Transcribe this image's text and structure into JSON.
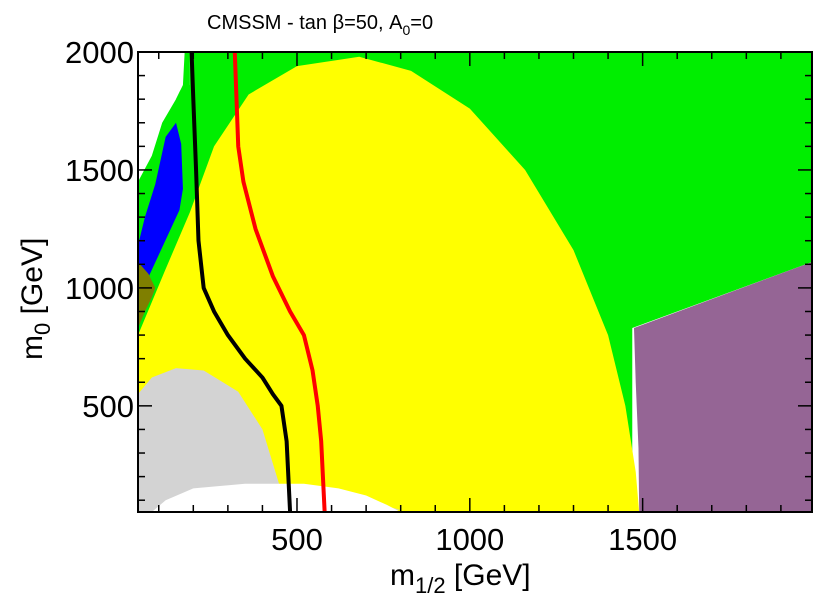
{
  "chart_data": {
    "type": "area",
    "title": "CMSSM  -  tan β=50,  A",
    "title_sub": "0",
    "title_tail": "=0",
    "xlabel": "m",
    "xlabel_sub": "1/2",
    "xlabel_unit": " [GeV]",
    "ylabel": "m",
    "ylabel_sub": "0",
    "ylabel_unit": " [GeV]",
    "xlim": [
      40,
      1990
    ],
    "ylim": [
      50,
      2000
    ],
    "x_ticks": [
      500,
      1000,
      1500
    ],
    "y_ticks": [
      500,
      1000,
      1500,
      2000
    ],
    "regions": [
      {
        "id": "green",
        "color": "#00ee00",
        "points": [
          [
            190,
            2000
          ],
          [
            1990,
            2000
          ],
          [
            1990,
            1110
          ],
          [
            1470,
            830
          ],
          [
            1470,
            50
          ],
          [
            40,
            50
          ],
          [
            40,
            1740
          ],
          [
            190,
            1860
          ]
        ]
      },
      {
        "id": "yellow",
        "color": "#ffff00",
        "points": [
          [
            40,
            800
          ],
          [
            120,
            1080
          ],
          [
            190,
            1320
          ],
          [
            260,
            1600
          ],
          [
            360,
            1820
          ],
          [
            500,
            1940
          ],
          [
            680,
            1980
          ],
          [
            830,
            1920
          ],
          [
            1000,
            1760
          ],
          [
            1160,
            1500
          ],
          [
            1300,
            1160
          ],
          [
            1400,
            800
          ],
          [
            1450,
            500
          ],
          [
            1480,
            220
          ],
          [
            1490,
            50
          ],
          [
            40,
            50
          ]
        ]
      },
      {
        "id": "purple",
        "color": "#956595",
        "points": [
          [
            1475,
            830
          ],
          [
            1990,
            1110
          ],
          [
            1990,
            50
          ],
          [
            1490,
            50
          ],
          [
            1488,
            320
          ],
          [
            1480,
            600
          ]
        ]
      },
      {
        "id": "blue",
        "color": "#0000ff",
        "points": [
          [
            40,
            1180
          ],
          [
            60,
            1300
          ],
          [
            90,
            1440
          ],
          [
            120,
            1640
          ],
          [
            150,
            1700
          ],
          [
            165,
            1610
          ],
          [
            170,
            1420
          ],
          [
            160,
            1330
          ],
          [
            100,
            1140
          ],
          [
            40,
            950
          ]
        ]
      },
      {
        "id": "olive",
        "color": "#7f7f00",
        "points": [
          [
            40,
            830
          ],
          [
            60,
            900
          ],
          [
            80,
            960
          ],
          [
            90,
            1000
          ],
          [
            70,
            1060
          ],
          [
            40,
            1110
          ]
        ]
      },
      {
        "id": "grey",
        "color": "#d3d3d3",
        "points": [
          [
            40,
            550
          ],
          [
            80,
            620
          ],
          [
            150,
            660
          ],
          [
            230,
            650
          ],
          [
            330,
            560
          ],
          [
            400,
            400
          ],
          [
            450,
            160
          ],
          [
            500,
            120
          ],
          [
            600,
            100
          ],
          [
            700,
            90
          ],
          [
            800,
            60
          ],
          [
            80,
            50
          ],
          [
            40,
            50
          ]
        ]
      },
      {
        "id": "white-bottom",
        "color": "#ffffff",
        "points": [
          [
            80,
            50
          ],
          [
            120,
            100
          ],
          [
            200,
            150
          ],
          [
            350,
            170
          ],
          [
            520,
            170
          ],
          [
            620,
            150
          ],
          [
            700,
            120
          ],
          [
            760,
            80
          ],
          [
            800,
            50
          ]
        ]
      },
      {
        "id": "white-topleft",
        "color": "#ffffff",
        "points": [
          [
            40,
            2000
          ],
          [
            175,
            2000
          ],
          [
            170,
            1860
          ],
          [
            150,
            1800
          ],
          [
            110,
            1700
          ],
          [
            80,
            1560
          ],
          [
            40,
            1450
          ]
        ]
      },
      {
        "id": "green-wedge",
        "color": "#00ee00",
        "points": [
          [
            190,
            2000
          ],
          [
            175,
            2000
          ],
          [
            170,
            1860
          ],
          [
            150,
            1800
          ],
          [
            190,
            1820
          ]
        ]
      }
    ],
    "series": [
      {
        "id": "black-line",
        "color": "#000000",
        "x": [
          195,
          200,
          208,
          215,
          230,
          260,
          300,
          350,
          400,
          430,
          455,
          470,
          475,
          480
        ],
        "y": [
          2000,
          1800,
          1500,
          1200,
          1000,
          900,
          800,
          700,
          620,
          550,
          500,
          350,
          200,
          50
        ]
      },
      {
        "id": "red-line",
        "color": "#ff0000",
        "x": [
          320,
          325,
          330,
          345,
          380,
          430,
          480,
          520,
          545,
          560,
          570,
          575,
          580
        ],
        "y": [
          2000,
          1800,
          1600,
          1450,
          1250,
          1050,
          900,
          800,
          650,
          500,
          350,
          200,
          50
        ]
      }
    ]
  }
}
